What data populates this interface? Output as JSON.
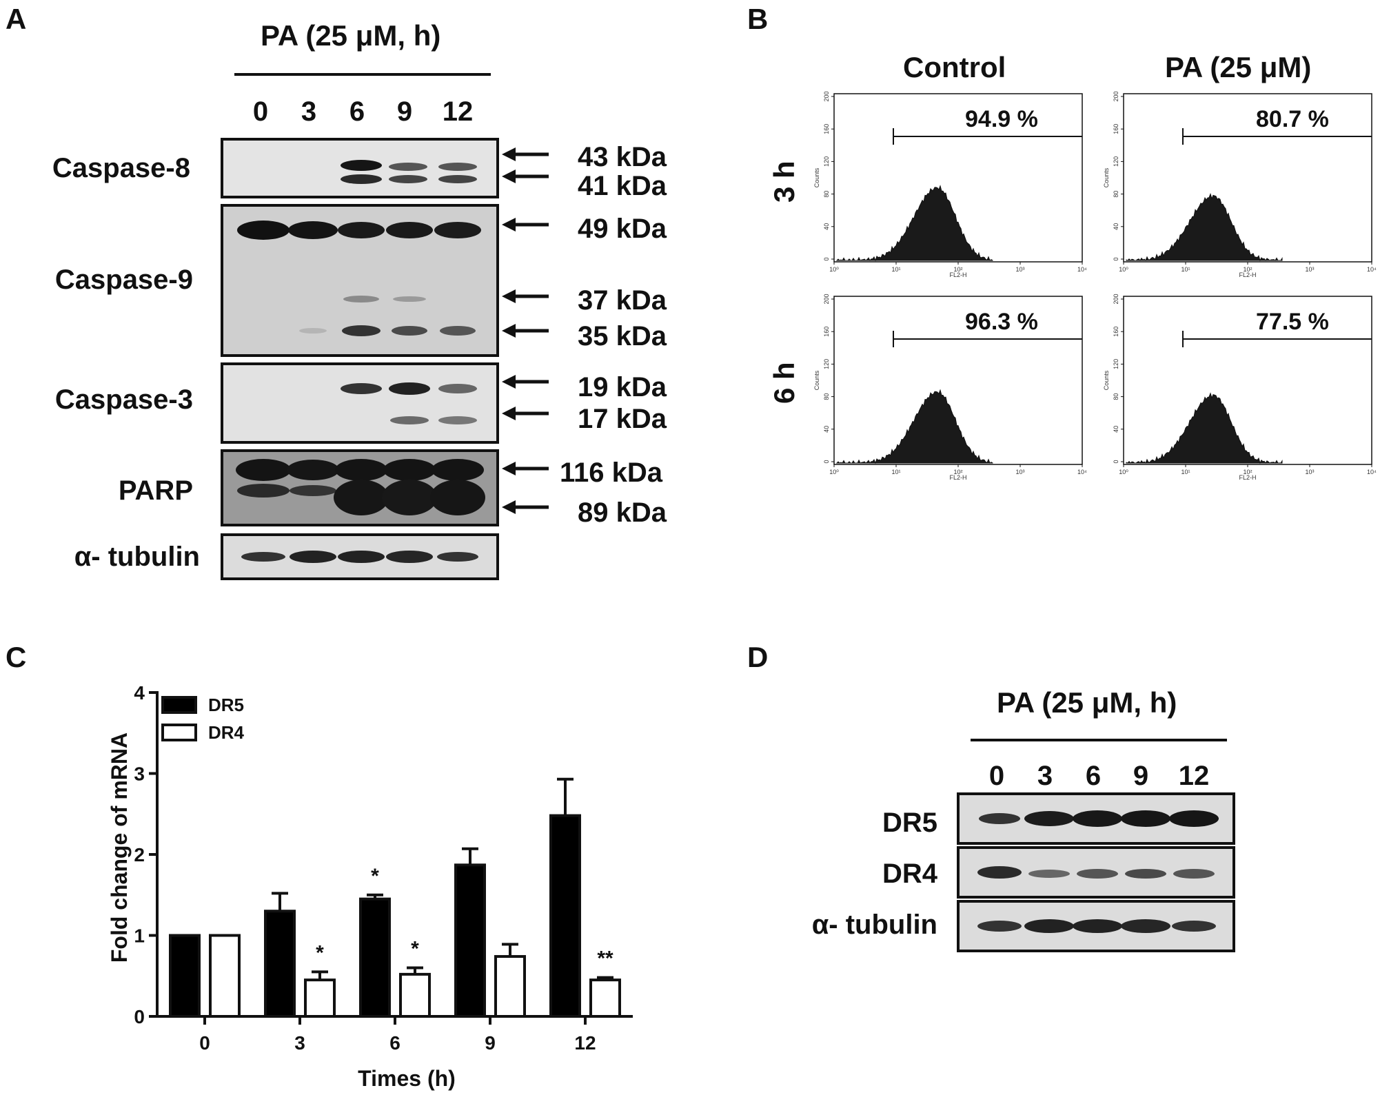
{
  "panel_a": {
    "letter": "A",
    "header": "PA (25 μM, h)",
    "lanes": [
      "0",
      "3",
      "6",
      "9",
      "12"
    ],
    "rows": [
      {
        "label": "Caspase-8",
        "sizes": [
          "43 kDa",
          "41 kDa"
        ]
      },
      {
        "label": "Caspase-9",
        "sizes": [
          "49 kDa",
          "37 kDa",
          "35 kDa"
        ]
      },
      {
        "label": "Caspase-3",
        "sizes": [
          "19 kDa",
          "17 kDa"
        ]
      },
      {
        "label": "PARP",
        "sizes": [
          "116 kDa",
          "89 kDa"
        ]
      },
      {
        "label": "α- tubulin",
        "sizes": []
      }
    ]
  },
  "panel_b": {
    "letter": "B",
    "columns": [
      "Control",
      "PA (25 μM)"
    ],
    "rows": [
      "3 h",
      "6 h"
    ],
    "percentages": [
      [
        "94.9 %",
        "80.7 %"
      ],
      [
        "96.3 %",
        "77.5 %"
      ]
    ],
    "y_axis_label": "Counts",
    "x_axis_label": "FL2-H",
    "y_ticks": [
      "0",
      "40",
      "80",
      "120",
      "160",
      "200"
    ],
    "x_ticks": [
      "10⁰",
      "10¹",
      "10²",
      "10³",
      "10⁴"
    ]
  },
  "panel_c": {
    "letter": "C",
    "chart_data": {
      "type": "bar",
      "categories": [
        "0",
        "3",
        "6",
        "9",
        "12"
      ],
      "series": [
        {
          "name": "DR5",
          "values": [
            1.0,
            1.3,
            1.45,
            1.87,
            2.48
          ],
          "errors": [
            0.0,
            0.22,
            0.05,
            0.2,
            0.45
          ],
          "color": "#000000",
          "fill": "solid"
        },
        {
          "name": "DR4",
          "values": [
            1.0,
            0.45,
            0.52,
            0.74,
            0.45
          ],
          "errors": [
            0.0,
            0.1,
            0.08,
            0.15,
            0.03
          ],
          "color": "#000000",
          "fill": "open"
        }
      ],
      "significance": [
        {
          "category": "3",
          "series": "DR4",
          "label": "*"
        },
        {
          "category": "6",
          "series": "DR5",
          "label": "*"
        },
        {
          "category": "6",
          "series": "DR4",
          "label": "*"
        },
        {
          "category": "12",
          "series": "DR4",
          "label": "**"
        }
      ],
      "xlabel": "Times (h)",
      "ylabel": "Fold change of mRNA",
      "ylim": [
        0,
        4
      ],
      "yticks": [
        "0",
        "1",
        "2",
        "3",
        "4"
      ],
      "legend_position": "top-left",
      "grid": false
    }
  },
  "panel_d": {
    "letter": "D",
    "header": "PA (25 μM, h)",
    "lanes": [
      "0",
      "3",
      "6",
      "9",
      "12"
    ],
    "rows": [
      "DR5",
      "DR4",
      "α- tubulin"
    ]
  }
}
